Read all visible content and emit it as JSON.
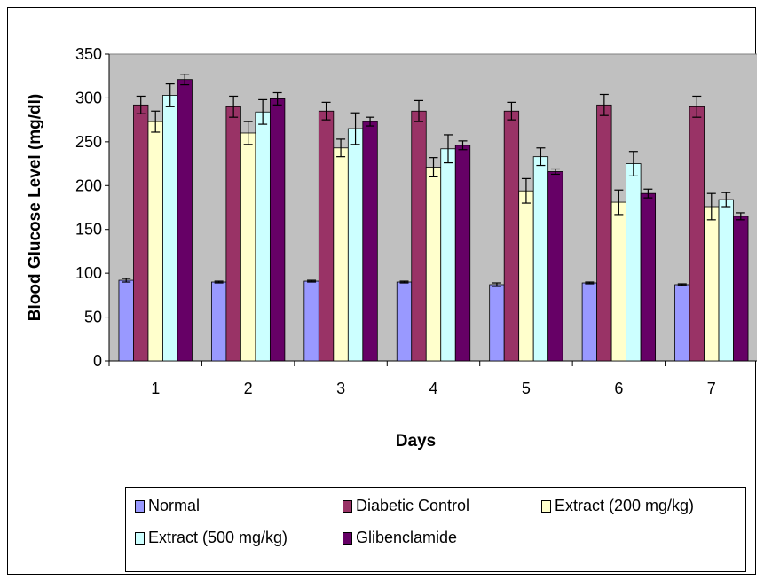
{
  "chart_data": {
    "type": "bar",
    "title": "",
    "xlabel": "Days",
    "ylabel": "Blood Glucose Level (mg/dl)",
    "ylim": [
      0,
      350
    ],
    "yticks": [
      0,
      50,
      100,
      150,
      200,
      250,
      300,
      350
    ],
    "categories": [
      "1",
      "2",
      "3",
      "4",
      "5",
      "6",
      "7"
    ],
    "grid": false,
    "error_bars": true,
    "legend_position": "bottom",
    "series": [
      {
        "name": "Normal",
        "color": "#9999ff",
        "values": [
          92,
          90,
          91,
          90,
          87,
          89,
          87
        ],
        "errors": [
          2,
          1,
          1,
          1,
          2,
          1,
          1
        ]
      },
      {
        "name": "Diabetic Control",
        "color": "#993366",
        "values": [
          292,
          290,
          285,
          285,
          285,
          292,
          290
        ],
        "errors": [
          10,
          12,
          10,
          12,
          10,
          12,
          12
        ]
      },
      {
        "name": "Extract (200 mg/kg)",
        "color": "#ffffcc",
        "values": [
          273,
          260,
          243,
          221,
          194,
          181,
          176
        ],
        "errors": [
          12,
          13,
          10,
          11,
          14,
          14,
          15
        ]
      },
      {
        "name": "Extract (500 mg/kg)",
        "color": "#ccffff",
        "values": [
          303,
          284,
          265,
          242,
          233,
          225,
          184
        ],
        "errors": [
          13,
          14,
          18,
          16,
          10,
          14,
          8
        ]
      },
      {
        "name": "Glibenclamide",
        "color": "#660066",
        "values": [
          321,
          299,
          273,
          246,
          216,
          191,
          165
        ],
        "errors": [
          6,
          7,
          5,
          5,
          3,
          5,
          4
        ]
      }
    ]
  }
}
